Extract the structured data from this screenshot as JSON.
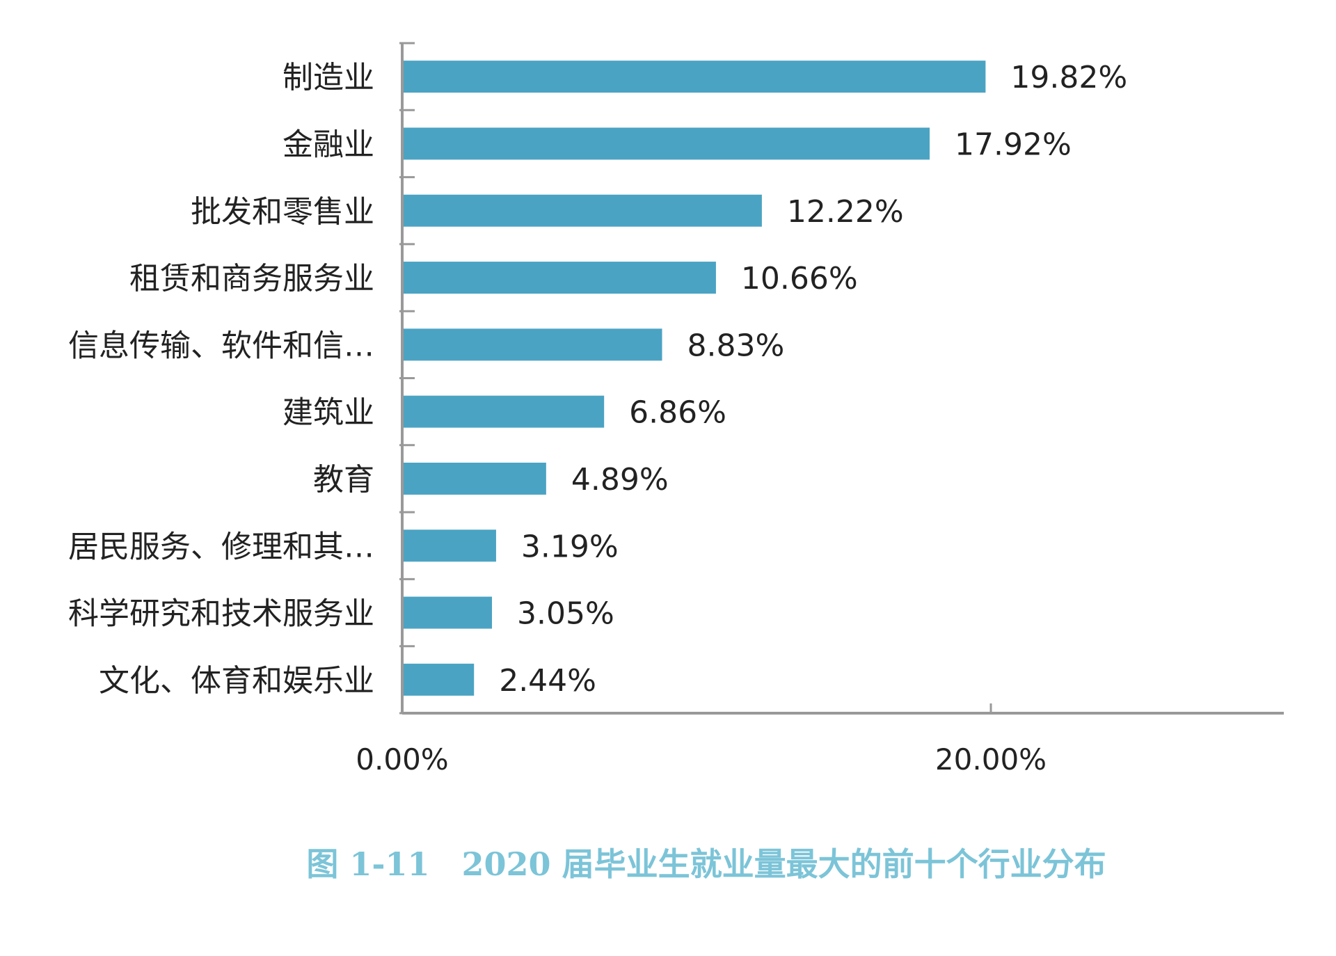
{
  "chart_data": {
    "type": "bar",
    "orientation": "horizontal",
    "categories": [
      "制造业",
      "金融业",
      "批发和零售业",
      "租赁和商务服务业",
      "信息传输、软件和信…",
      "建筑业",
      "教育",
      "居民服务、修理和其…",
      "科学研究和技术服务业",
      "文化、体育和娱乐业"
    ],
    "values": [
      19.82,
      17.92,
      12.22,
      10.66,
      8.83,
      6.86,
      4.89,
      3.19,
      3.05,
      2.44
    ],
    "value_labels": [
      "19.82%",
      "17.92%",
      "12.22%",
      "10.66%",
      "8.83%",
      "6.86%",
      "4.89%",
      "3.19%",
      "3.05%",
      "2.44%"
    ],
    "xlim": [
      0,
      30
    ],
    "x_ticks": [
      0,
      20
    ],
    "x_tick_labels": [
      "0.00%",
      "20.00%"
    ],
    "grid": false,
    "legend": "none",
    "bar_color": "#4ba3c3",
    "axis_color": "#999999",
    "label_color": "#222222",
    "caption": "图 1-11　2020 届毕业生就业量最大的前十个行业分布",
    "caption_color": "#7cc4d8"
  }
}
